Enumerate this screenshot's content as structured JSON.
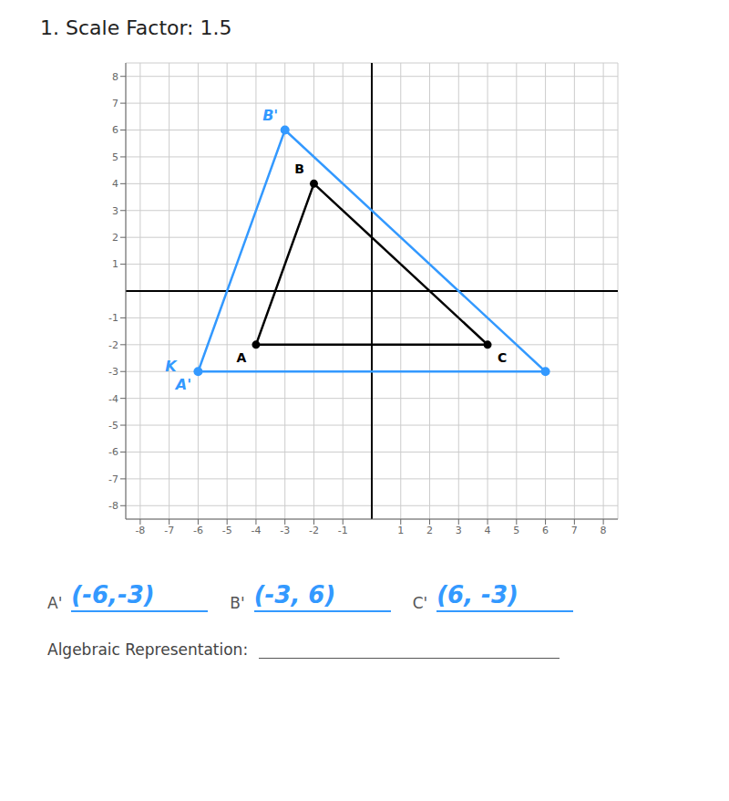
{
  "chart_data": {
    "type": "line",
    "title": "1. Scale Factor: 1.5",
    "xlim": [
      -8.5,
      8.5
    ],
    "ylim": [
      -8.5,
      8.5
    ],
    "xticks": [
      -8,
      -7,
      -6,
      -5,
      -4,
      -3,
      -2,
      -1,
      1,
      2,
      3,
      4,
      5,
      6,
      7,
      8
    ],
    "yticks": [
      -8,
      -7,
      -6,
      -5,
      -4,
      -3,
      -2,
      -1,
      1,
      2,
      3,
      4,
      5,
      6,
      7,
      8
    ],
    "grid": true,
    "series": [
      {
        "color": "#000000",
        "marker": "circle",
        "x": [
          -4,
          -2,
          4
        ],
        "values": [
          -2,
          4,
          -2
        ],
        "labels": [
          "A",
          "B",
          "C"
        ]
      },
      {
        "color": "#3399ff",
        "marker": "circle",
        "x": [
          -6,
          -3,
          6
        ],
        "values": [
          -3,
          6,
          -3
        ],
        "labels": [
          "A'",
          "B'",
          null
        ]
      }
    ],
    "annotations": [
      {
        "text": "K",
        "x": -6,
        "y": -3
      },
      {
        "label": "A'",
        "text": "(-6,-3)"
      },
      {
        "label": "B'",
        "text": "(-3, 6)"
      },
      {
        "label": "C'",
        "text": "(6, -3)"
      },
      {
        "text": "Algebraic Representation:"
      }
    ]
  }
}
